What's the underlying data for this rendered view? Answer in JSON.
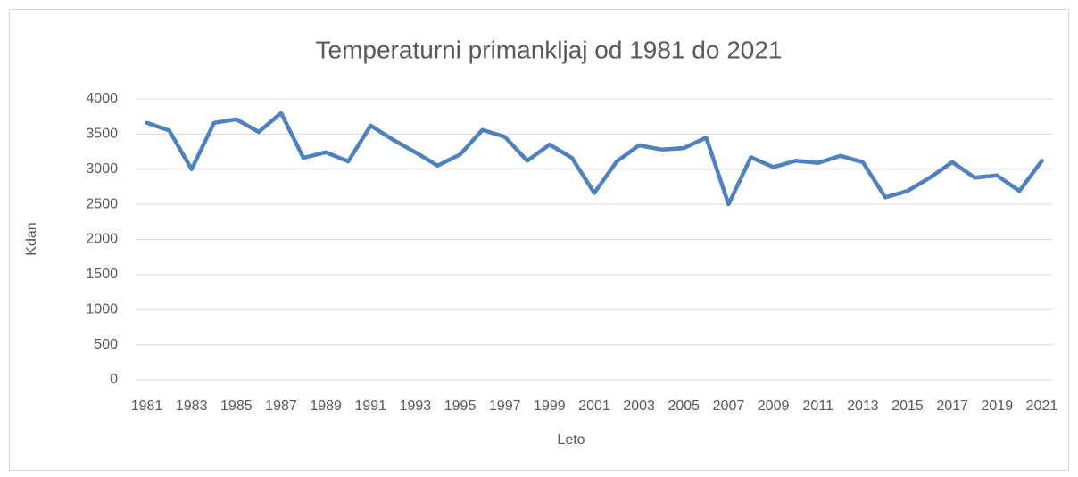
{
  "chart_data": {
    "type": "line",
    "title": "Temperaturni primankljaj od 1981 do 2021",
    "x_label": "Leto",
    "y_label": "Kdan",
    "categories": [
      "1981",
      null,
      "1983",
      null,
      "1985",
      null,
      "1987",
      null,
      "1989",
      null,
      "1991",
      null,
      "1993",
      null,
      "1995",
      null,
      "1997",
      null,
      "1999",
      null,
      "2001",
      null,
      "2003",
      null,
      "2005",
      null,
      "2007",
      null,
      "2009",
      null,
      "2011",
      null,
      "2013",
      null,
      "2015",
      null,
      "2017",
      null,
      "2019",
      null,
      "2021"
    ],
    "series": [
      {
        "name": "Kdan",
        "color": "#4f81bd",
        "values": [
          3660,
          3550,
          3000,
          3660,
          3710,
          3530,
          3800,
          3160,
          3240,
          3110,
          3620,
          3420,
          3240,
          3050,
          3210,
          3560,
          3460,
          3120,
          3350,
          3160,
          2660,
          3110,
          3340,
          3280,
          3300,
          3450,
          2500,
          3170,
          3030,
          3120,
          3090,
          3190,
          3100,
          2600,
          2690,
          2880,
          3100,
          2880,
          2910,
          2690,
          3120
        ]
      }
    ],
    "ylim": [
      0,
      4000
    ],
    "yticks": [
      0,
      500,
      1000,
      1500,
      2000,
      2500,
      3000,
      3500,
      4000
    ],
    "grid": true
  }
}
